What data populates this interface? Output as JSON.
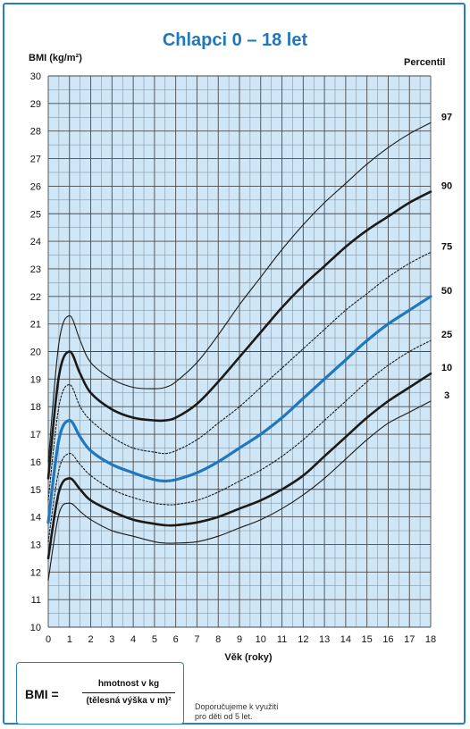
{
  "title": "Chlapci 0 – 18 let",
  "y_axis_label": "BMI (kg/m²)",
  "x_axis_label": "Věk (roky)",
  "percentile_header": "Percentil",
  "formula": {
    "lhs": "BMI =",
    "numerator": "hmotnost v kg",
    "denominator": "(tělesná výška v m)²"
  },
  "note_lines": [
    "Doporučujeme k využití",
    "pro děti od 5 let."
  ],
  "colors": {
    "accent": "#1f78bf",
    "plot_bg": "#cfe6f6",
    "grid": "#4a4a4a",
    "curve_dark": "#1a1a1a",
    "curve_50": "#1f78bf"
  },
  "chart_data": {
    "type": "line",
    "title": "Chlapci 0 – 18 let",
    "xlabel": "Věk (roky)",
    "ylabel": "BMI (kg/m²)",
    "xlim": [
      0,
      18
    ],
    "ylim": [
      10,
      30
    ],
    "x_ticks": [
      0,
      1,
      2,
      3,
      4,
      5,
      6,
      7,
      8,
      9,
      10,
      11,
      12,
      13,
      14,
      15,
      16,
      17,
      18
    ],
    "y_ticks": [
      10,
      11,
      12,
      13,
      14,
      15,
      16,
      17,
      18,
      19,
      20,
      21,
      22,
      23,
      24,
      25,
      26,
      27,
      28,
      29,
      30
    ],
    "grid": true,
    "x": [
      0,
      0.5,
      1,
      1.5,
      2,
      3,
      4,
      5,
      5.5,
      6,
      7,
      8,
      9,
      10,
      11,
      12,
      13,
      14,
      15,
      16,
      17,
      18
    ],
    "series": [
      {
        "name": "3",
        "style": "thin",
        "values": [
          11.7,
          14.1,
          14.5,
          14.2,
          13.9,
          13.5,
          13.3,
          13.1,
          13.05,
          13.05,
          13.1,
          13.3,
          13.6,
          13.9,
          14.3,
          14.8,
          15.4,
          16.1,
          16.8,
          17.4,
          17.8,
          18.2
        ]
      },
      {
        "name": "10",
        "style": "bold",
        "values": [
          12.5,
          14.9,
          15.4,
          15.0,
          14.6,
          14.2,
          13.9,
          13.75,
          13.7,
          13.7,
          13.8,
          14.0,
          14.3,
          14.6,
          15.0,
          15.5,
          16.2,
          16.9,
          17.6,
          18.2,
          18.7,
          19.2
        ]
      },
      {
        "name": "25",
        "style": "dotted",
        "values": [
          13.1,
          15.7,
          16.3,
          15.9,
          15.5,
          15.0,
          14.7,
          14.5,
          14.45,
          14.45,
          14.6,
          14.9,
          15.3,
          15.7,
          16.2,
          16.8,
          17.5,
          18.2,
          18.9,
          19.5,
          20.0,
          20.4
        ]
      },
      {
        "name": "50",
        "style": "blue",
        "values": [
          13.8,
          16.8,
          17.5,
          16.9,
          16.4,
          15.9,
          15.6,
          15.35,
          15.3,
          15.35,
          15.6,
          16.0,
          16.5,
          17.0,
          17.6,
          18.3,
          19.0,
          19.7,
          20.4,
          21.0,
          21.5,
          22.0
        ]
      },
      {
        "name": "75",
        "style": "dotted",
        "values": [
          14.6,
          18.0,
          18.8,
          18.0,
          17.5,
          16.9,
          16.5,
          16.35,
          16.3,
          16.4,
          16.8,
          17.4,
          18.0,
          18.7,
          19.4,
          20.1,
          20.8,
          21.5,
          22.1,
          22.7,
          23.2,
          23.6
        ]
      },
      {
        "name": "90",
        "style": "bold",
        "values": [
          15.4,
          19.1,
          20.0,
          19.2,
          18.5,
          17.9,
          17.6,
          17.5,
          17.5,
          17.6,
          18.1,
          18.9,
          19.8,
          20.7,
          21.6,
          22.4,
          23.1,
          23.8,
          24.4,
          24.9,
          25.4,
          25.8
        ]
      },
      {
        "name": "97",
        "style": "thin",
        "values": [
          16.0,
          20.3,
          21.3,
          20.4,
          19.6,
          19.0,
          18.7,
          18.65,
          18.7,
          18.9,
          19.6,
          20.6,
          21.7,
          22.7,
          23.7,
          24.6,
          25.4,
          26.1,
          26.8,
          27.4,
          27.9,
          28.3
        ]
      }
    ],
    "legend": "percentile labels at right end of curves"
  }
}
